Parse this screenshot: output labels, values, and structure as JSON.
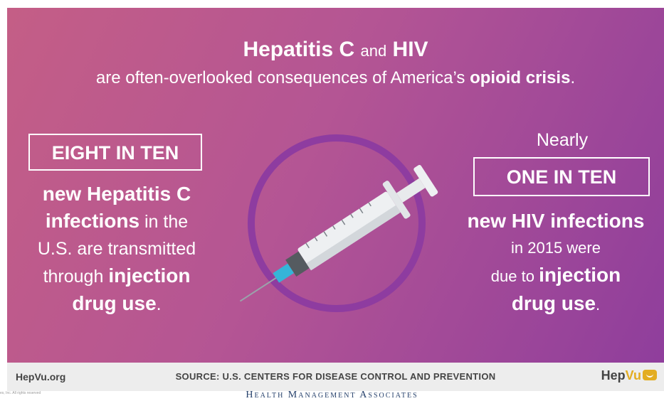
{
  "header": {
    "title_a": "Hepatitis C",
    "title_and": "and",
    "title_b": "HIV",
    "subtitle_pre": "are often-overlooked consequences of America’s",
    "subtitle_bold": "opioid crisis",
    "subtitle_end": "."
  },
  "left_stat": {
    "box_label": "EIGHT IN TEN",
    "line1": "new Hepatitis C",
    "line2_bold": "infections",
    "line2_rest": "in the",
    "line3": "U.S. are transmitted",
    "line4_pre": "through",
    "line4_bold": "injection",
    "line5_bold": "drug use",
    "line5_end": "."
  },
  "right_stat": {
    "pre_label": "Nearly",
    "box_label": "ONE IN TEN",
    "line1_bold": "new HIV infections",
    "line2": "in 2015 were",
    "line3_pre": "due to",
    "line3_bold": "injection",
    "line4_bold": "drug use",
    "line4_end": "."
  },
  "illustration": {
    "icon": "syringe-icon"
  },
  "footer": {
    "site": "HepVu.org",
    "source": "SOURCE: U.S. CENTERS FOR DISEASE CONTROL AND PREVENTION",
    "logo_hep": "Hep",
    "logo_vu": "Vu"
  },
  "copyright": "es, Inc. All rights reserved",
  "bottom_brand": "Health Management Associates",
  "colors": {
    "gradient_start": "#c45e86",
    "gradient_end": "#8f3e9c",
    "circle": "#8e3ca0",
    "logo_accent": "#e3ad22"
  }
}
